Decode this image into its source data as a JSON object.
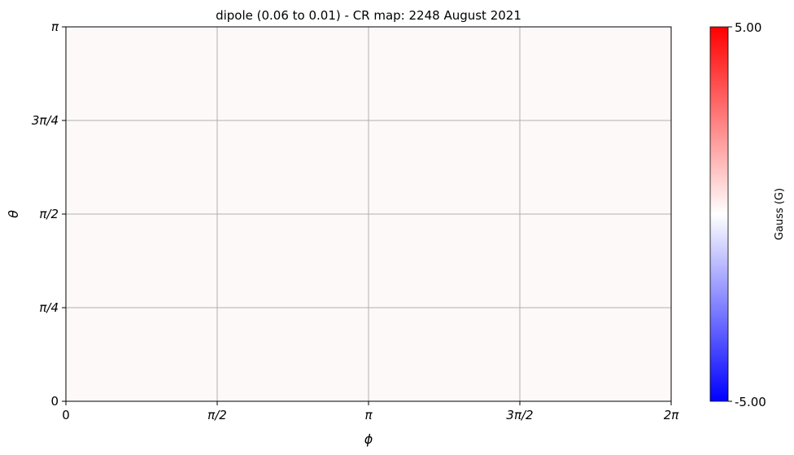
{
  "chart_data": {
    "type": "heatmap",
    "title": "dipole (0.06 to 0.01) - CR map: 2248 August 2021",
    "xlabel": "ϕ",
    "ylabel": "θ",
    "xlim": [
      0,
      6.283185307
    ],
    "ylim": [
      0,
      3.141592654
    ],
    "x_ticks": [
      {
        "value": 0,
        "label": "0"
      },
      {
        "value": 1.570796327,
        "label": "π/2"
      },
      {
        "value": 3.141592654,
        "label": "π"
      },
      {
        "value": 4.71238898,
        "label": "3π/2"
      },
      {
        "value": 6.283185307,
        "label": "2π"
      }
    ],
    "y_ticks": [
      {
        "value": 0,
        "label": "0"
      },
      {
        "value": 0.785398163,
        "label": "π/4"
      },
      {
        "value": 1.570796327,
        "label": "π/2"
      },
      {
        "value": 2.35619449,
        "label": "3π/4"
      },
      {
        "value": 3.141592654,
        "label": "π"
      }
    ],
    "grid": true,
    "field_value": 0.06,
    "fill_color": "#fdf9f8",
    "colorbar": {
      "label": "Gauss (G)",
      "min": -5.0,
      "max": 5.0,
      "min_label": "-5.00",
      "max_label": "5.00",
      "colors": [
        "#0000ff",
        "#ffffff",
        "#ff0000"
      ]
    }
  }
}
